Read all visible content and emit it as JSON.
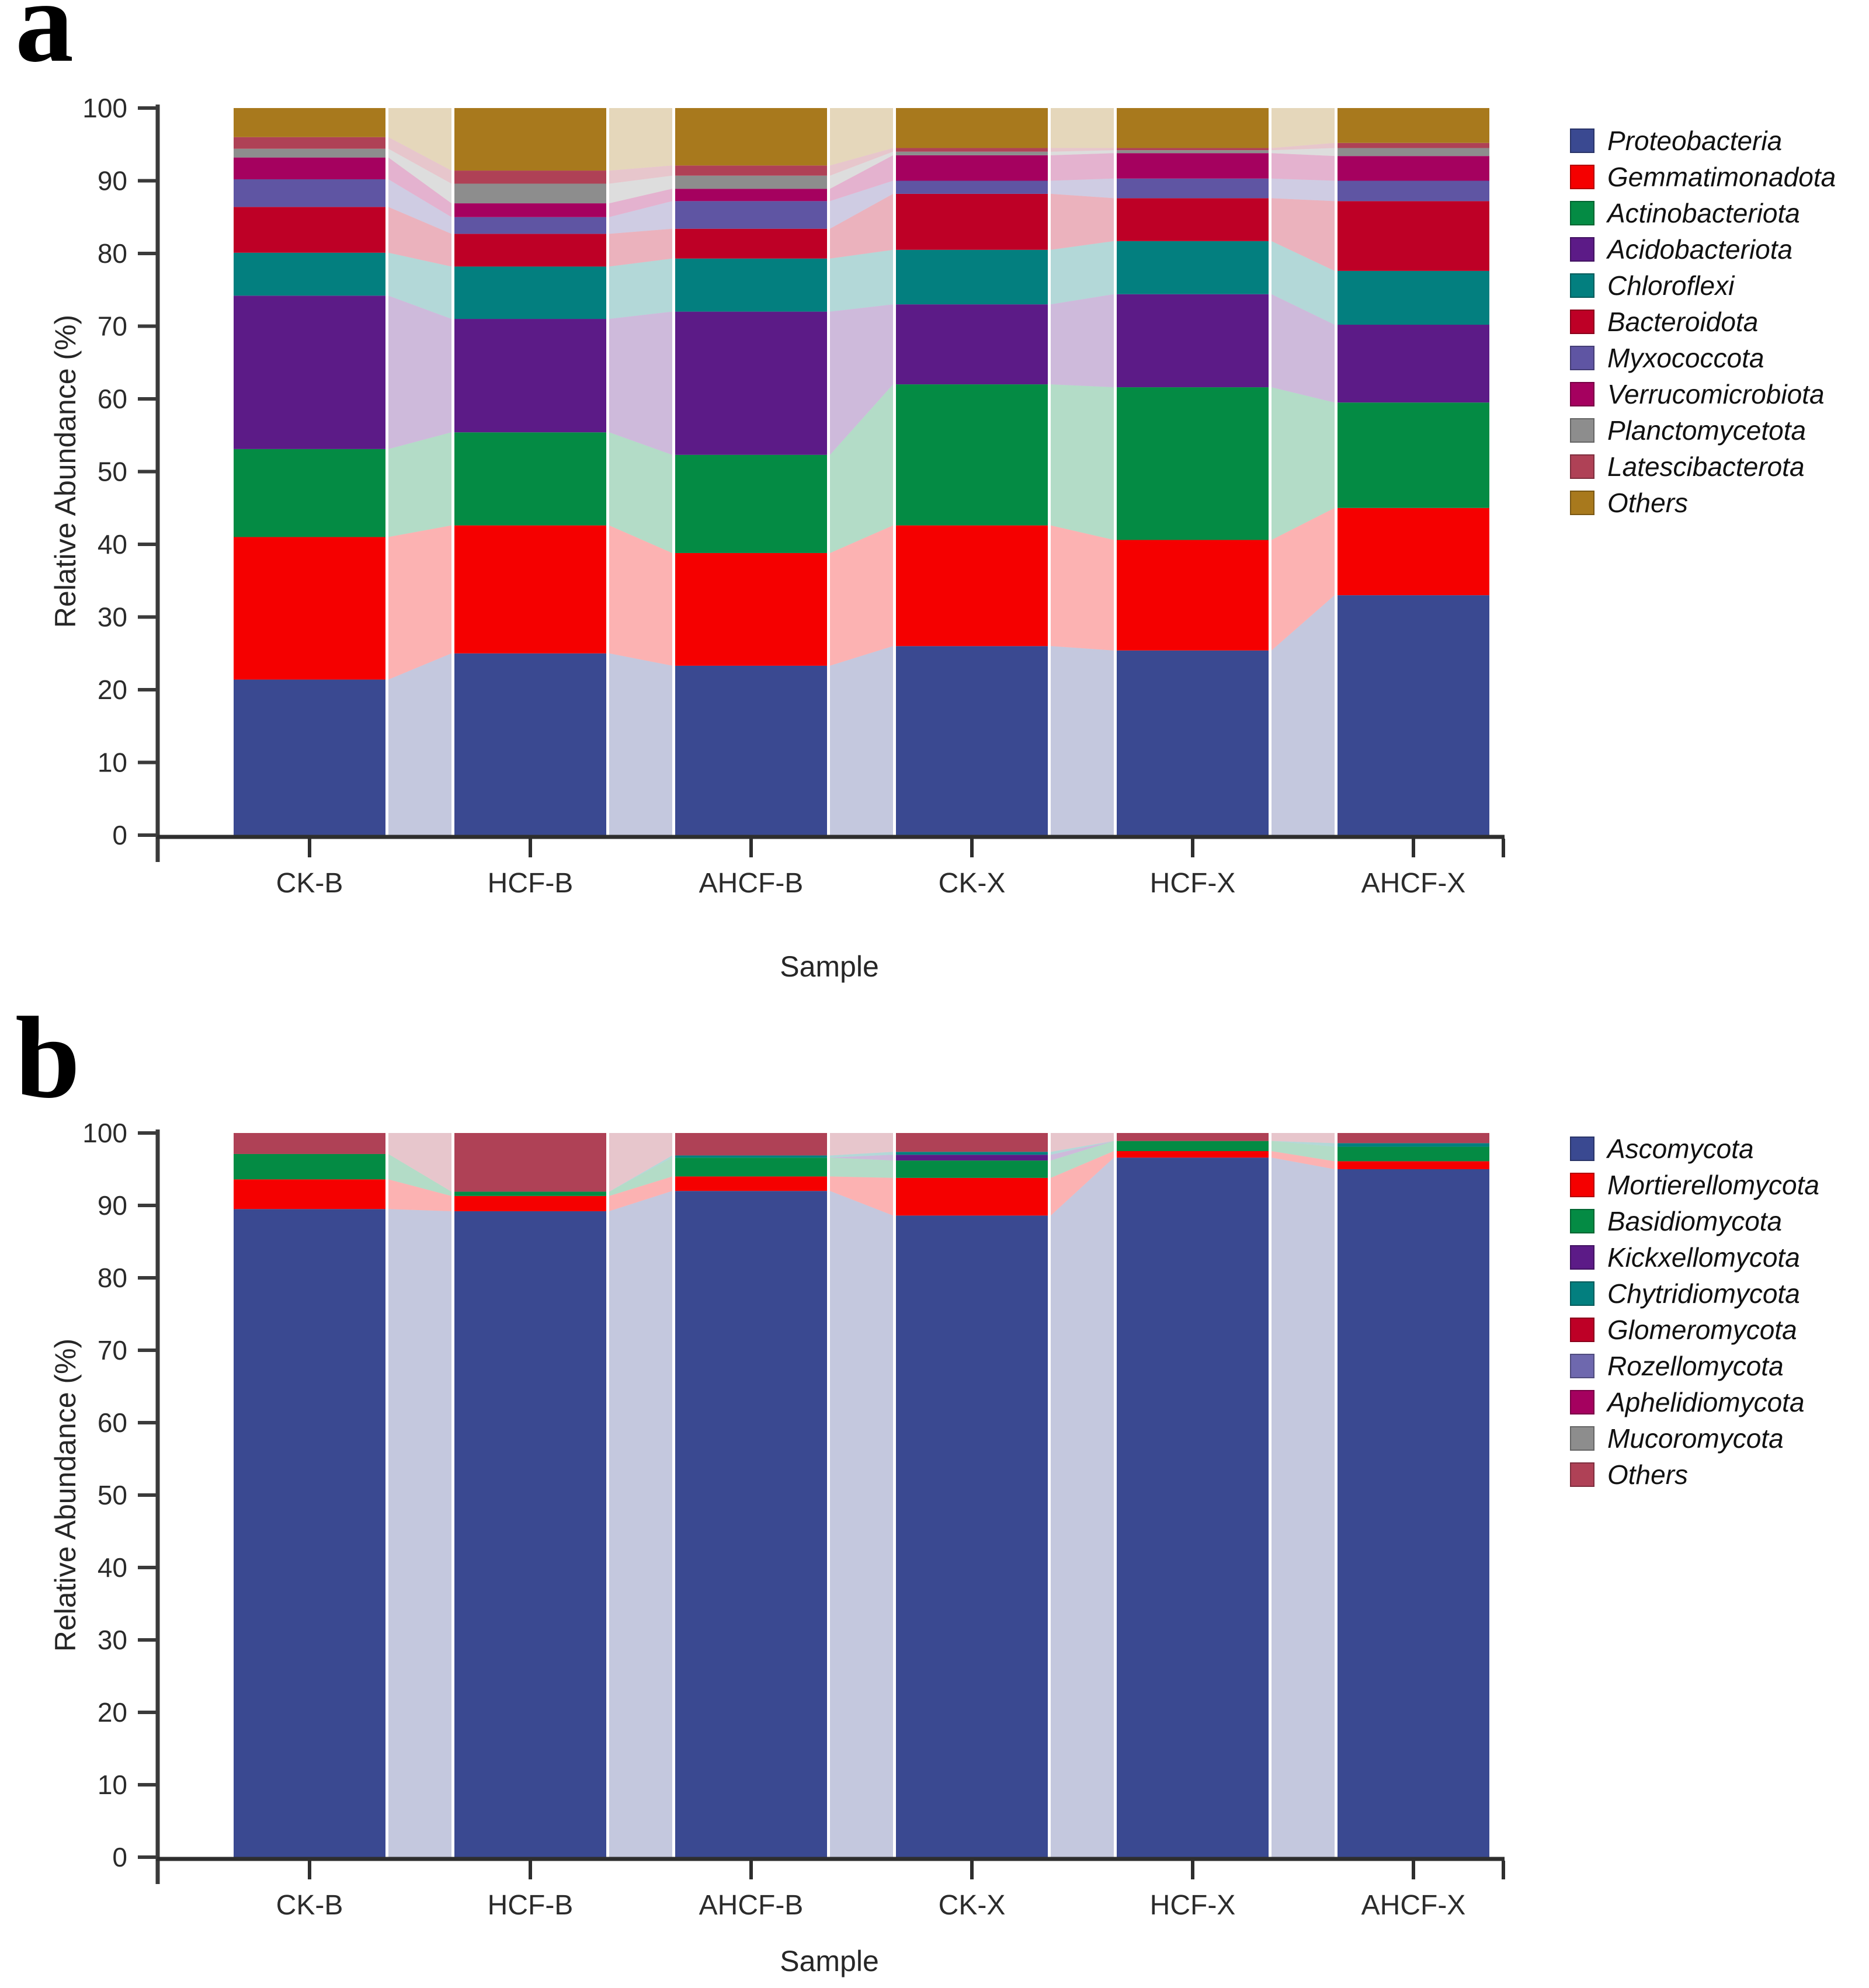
{
  "figure": {
    "panels": [
      {
        "letter": "a",
        "xlabel": "Sample",
        "ylabel": "Relative Abundance (%)"
      },
      {
        "letter": "b",
        "xlabel": "Sample",
        "ylabel": "Relative Abundance (%)"
      }
    ]
  },
  "chart_data": [
    {
      "id": "a",
      "type": "bar",
      "stacked": true,
      "title": "",
      "xlabel": "Sample",
      "ylabel": "Relative Abundance (%)",
      "categories": [
        "CK-B",
        "HCF-B",
        "AHCF-B",
        "CK-X",
        "HCF-X",
        "AHCF-X"
      ],
      "ylim": [
        0,
        100
      ],
      "y_ticks": [
        0,
        10,
        20,
        30,
        40,
        50,
        60,
        70,
        80,
        90,
        100
      ],
      "grid": false,
      "legend_position": "right",
      "flow_ribbons": true,
      "ribbon_opacity": 0.3,
      "series": [
        {
          "name": "Proteobacteria",
          "color": "#3A4991",
          "values": [
            21.4,
            25.0,
            23.3,
            26.0,
            25.4,
            33.0
          ]
        },
        {
          "name": "Gemmatimonadota",
          "color": "#F50000",
          "values": [
            19.6,
            17.6,
            15.5,
            16.6,
            15.2,
            12.0
          ]
        },
        {
          "name": "Actinobacteriota",
          "color": "#048B44",
          "values": [
            12.1,
            12.8,
            13.5,
            19.4,
            21.0,
            14.5
          ]
        },
        {
          "name": "Acidobacteriota",
          "color": "#5C1B87",
          "values": [
            21.1,
            15.6,
            19.7,
            11.0,
            12.8,
            10.7
          ]
        },
        {
          "name": "Chloroflexi",
          "color": "#037F7F",
          "values": [
            5.9,
            7.2,
            7.3,
            7.5,
            7.3,
            7.4
          ]
        },
        {
          "name": "Bacteroidota",
          "color": "#BE0026",
          "values": [
            6.3,
            4.5,
            4.1,
            7.7,
            5.9,
            9.6
          ]
        },
        {
          "name": "Myxococcota",
          "color": "#5F55A3",
          "values": [
            3.8,
            2.3,
            3.8,
            1.8,
            2.7,
            2.8
          ]
        },
        {
          "name": "Verrucomicrobiota",
          "color": "#A5015F",
          "values": [
            3.0,
            1.9,
            1.7,
            3.5,
            3.5,
            3.4
          ]
        },
        {
          "name": "Planctomycetota",
          "color": "#8D8D8D",
          "values": [
            1.2,
            2.7,
            1.8,
            0.5,
            0.4,
            1.1
          ]
        },
        {
          "name": "Latescibacterota",
          "color": "#AF4156",
          "values": [
            1.6,
            1.8,
            1.4,
            0.5,
            0.3,
            0.7
          ]
        },
        {
          "name": "Others",
          "color": "#A8791D",
          "values": [
            4.0,
            8.6,
            7.9,
            5.5,
            5.5,
            4.8
          ]
        }
      ]
    },
    {
      "id": "b",
      "type": "bar",
      "stacked": true,
      "title": "",
      "xlabel": "Sample",
      "ylabel": "Relative Abundance (%)",
      "categories": [
        "CK-B",
        "HCF-B",
        "AHCF-B",
        "CK-X",
        "HCF-X",
        "AHCF-X"
      ],
      "ylim": [
        0,
        100
      ],
      "y_ticks": [
        0,
        10,
        20,
        30,
        40,
        50,
        60,
        70,
        80,
        90,
        100
      ],
      "grid": false,
      "legend_position": "right",
      "flow_ribbons": true,
      "ribbon_opacity": 0.3,
      "series": [
        {
          "name": "Ascomycota",
          "color": "#3A4991",
          "values": [
            89.5,
            89.2,
            92.0,
            88.6,
            96.6,
            95.0
          ]
        },
        {
          "name": "Mortierellomycota",
          "color": "#F50000",
          "values": [
            4.1,
            2.1,
            2.0,
            5.2,
            0.9,
            1.1
          ]
        },
        {
          "name": "Basidiomycota",
          "color": "#048B44",
          "values": [
            3.5,
            0.6,
            2.6,
            2.4,
            1.4,
            2.0
          ]
        },
        {
          "name": "Kickxellomycota",
          "color": "#5C1B87",
          "values": [
            0,
            0,
            0,
            0.8,
            0,
            0
          ]
        },
        {
          "name": "Chytridiomycota",
          "color": "#037F7F",
          "values": [
            0,
            0,
            0.3,
            0.4,
            0,
            0.5
          ]
        },
        {
          "name": "Glomeromycota",
          "color": "#BE0026",
          "values": [
            0,
            0,
            0,
            0,
            0,
            0
          ]
        },
        {
          "name": "Rozellomycota",
          "color": "#6E68AE",
          "values": [
            0,
            0,
            0,
            0,
            0,
            0
          ]
        },
        {
          "name": "Aphelidiomycota",
          "color": "#A5015F",
          "values": [
            0,
            0,
            0,
            0,
            0,
            0
          ]
        },
        {
          "name": "Mucoromycota",
          "color": "#8D8D8D",
          "values": [
            0,
            0,
            0,
            0,
            0,
            0
          ]
        },
        {
          "name": "Others",
          "color": "#AF4156",
          "values": [
            2.9,
            8.1,
            3.1,
            2.6,
            1.1,
            1.4
          ]
        }
      ]
    }
  ]
}
